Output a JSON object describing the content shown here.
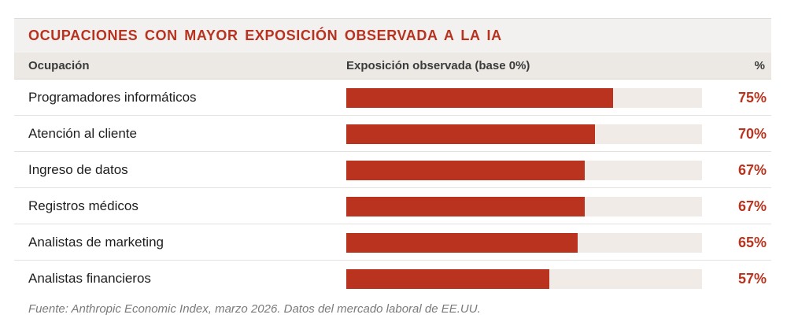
{
  "chart_data": {
    "type": "bar",
    "title": "OCUPACIONES CON MAYOR EXPOSICIÓN OBSERVADA A LA IA",
    "columns": {
      "occupation": "Ocupación",
      "exposure": "Exposición observada (base 0%)",
      "percent": "%"
    },
    "categories": [
      "Programadores informáticos",
      "Atención al cliente",
      "Ingreso de datos",
      "Registros médicos",
      "Analistas de marketing",
      "Analistas financieros"
    ],
    "values": [
      75,
      70,
      67,
      67,
      65,
      57
    ],
    "value_labels": [
      "75%",
      "70%",
      "67%",
      "67%",
      "65%",
      "57%"
    ],
    "xlim": [
      0,
      100
    ],
    "colors": {
      "bar": "#b9331e",
      "track": "#f0ebe7",
      "title": "#b83220"
    }
  },
  "source": "Fuente: Anthropic Economic Index, marzo 2026. Datos del mercado laboral de EE.UU."
}
